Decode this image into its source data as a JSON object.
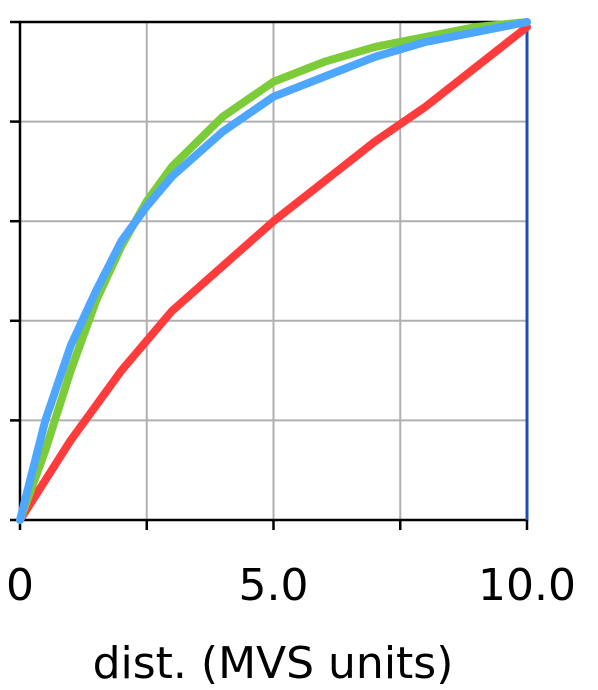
{
  "chart_data": {
    "type": "line",
    "x_label": "dist. (MVS units)",
    "x": [
      0,
      0.5,
      1,
      1.5,
      2,
      2.5,
      3,
      4,
      5,
      6,
      7,
      8,
      9,
      10
    ],
    "series": [
      {
        "color": "#ff3b3b",
        "values": [
          0,
          0.08,
          0.16,
          0.23,
          0.3,
          0.36,
          0.42,
          0.51,
          0.6,
          0.68,
          0.76,
          0.83,
          0.91,
          0.99
        ]
      },
      {
        "color": "#7ccc3a",
        "values": [
          0,
          0.14,
          0.3,
          0.44,
          0.55,
          0.64,
          0.71,
          0.81,
          0.88,
          0.92,
          0.95,
          0.97,
          0.99,
          1.0
        ]
      },
      {
        "color": "#4da6ff",
        "values": [
          0,
          0.2,
          0.35,
          0.46,
          0.56,
          0.63,
          0.69,
          0.78,
          0.85,
          0.89,
          0.93,
          0.96,
          0.98,
          1.0
        ]
      }
    ],
    "xlim": [
      0,
      10
    ],
    "ylim": [
      0,
      1
    ],
    "xticks": [
      0,
      {
        "value": 2.5,
        "label": null
      },
      {
        "value": 5,
        "label": "5.0"
      },
      {
        "value": 7.5,
        "label": null
      },
      {
        "value": 10,
        "label": "10.0"
      }
    ],
    "yticks": [
      {
        "value": 0,
        "label": null
      },
      {
        "value": 0.2,
        "label": null
      },
      {
        "value": 0.4,
        "label": null
      },
      {
        "value": 0.6,
        "label": null
      },
      {
        "value": 0.8,
        "label": null
      },
      {
        "value": 1,
        "label": null
      }
    ],
    "grid": true
  }
}
